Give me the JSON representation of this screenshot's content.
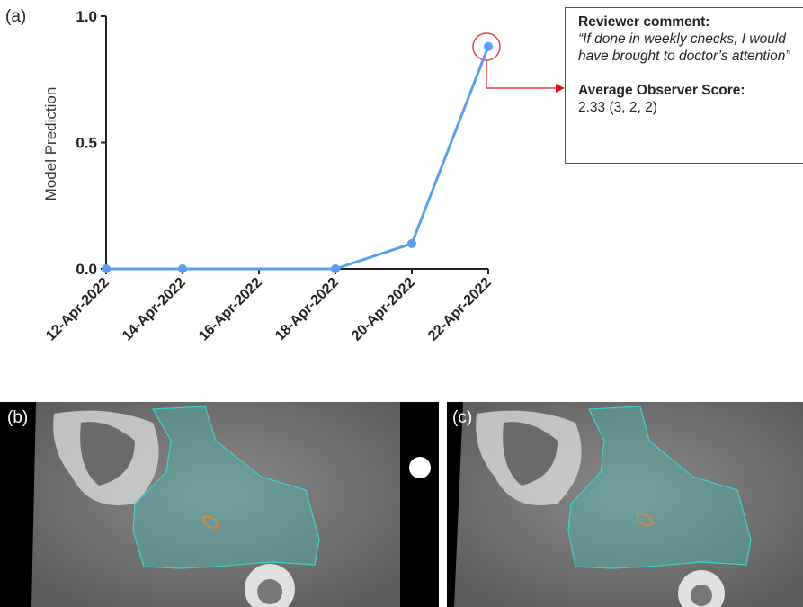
{
  "panel_labels": [
    "(a)",
    "(b)",
    "(c)"
  ],
  "chart_data": {
    "type": "line",
    "y_label": "Model Prediction",
    "x": [
      "2022-04-12",
      "2022-04-14",
      "2022-04-18",
      "2022-04-20",
      "2022-04-22"
    ],
    "values": [
      0,
      0,
      0,
      0.1,
      0.88
    ],
    "color": "#5b9ef0",
    "ylim": [
      0,
      1
    ],
    "yticks": [
      {
        "value": 0,
        "label": "0.0"
      },
      {
        "value": 0.5,
        "label": "0.5"
      },
      {
        "value": 1,
        "label": "1.0"
      }
    ],
    "xlim": [
      "2022-04-12",
      "2022-04-22"
    ],
    "xticks": [
      {
        "value": "2022-04-12",
        "label": "12-Apr-2022"
      },
      {
        "value": "2022-04-14",
        "label": "14-Apr-2022"
      },
      {
        "value": "2022-04-16",
        "label": "16-Apr-2022"
      },
      {
        "value": "2022-04-18",
        "label": "18-Apr-2022"
      },
      {
        "value": "2022-04-20",
        "label": "20-Apr-2022"
      },
      {
        "value": "2022-04-22",
        "label": "22-Apr-2022"
      }
    ],
    "annotation": {
      "heading": "Reviewer comment:",
      "quote": "“If done in weekly checks, I would have brought to doctor’s attention”",
      "score_heading": "Average Observer Score:",
      "score": "2.33 (3, 2, 2)"
    }
  }
}
